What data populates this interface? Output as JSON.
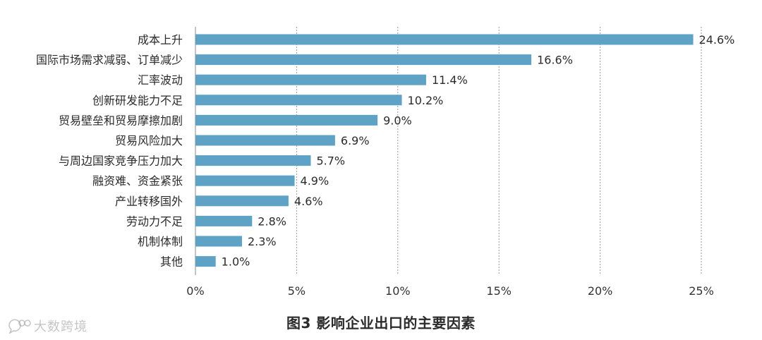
{
  "chart_data": {
    "type": "bar",
    "orientation": "horizontal",
    "title": "图3  影响企业出口的主要因素",
    "categories": [
      "成本上升",
      "国际市场需求减弱、订单减少",
      "汇率波动",
      "创新研发能力不足",
      "贸易壁垒和贸易摩擦加剧",
      "贸易风险加大",
      "与周边国家竞争压力加大",
      "融资难、资金紧张",
      "产业转移国外",
      "劳动力不足",
      "机制体制",
      "其他"
    ],
    "values": [
      24.6,
      16.6,
      11.4,
      10.2,
      9.0,
      6.9,
      5.7,
      4.9,
      4.6,
      2.8,
      2.3,
      1.0
    ],
    "data_labels": [
      "24.6%",
      "16.6%",
      "11.4%",
      "10.2%",
      "9.0%",
      "6.9%",
      "5.7%",
      "4.9%",
      "4.6%",
      "2.8%",
      "2.3%",
      "1.0%"
    ],
    "xlim": [
      0,
      25
    ],
    "xticks": [
      0,
      5,
      10,
      15,
      20,
      25
    ],
    "xtick_labels": [
      "0%",
      "5%",
      "10%",
      "15%",
      "20%",
      "25%"
    ],
    "xlabel": "",
    "ylabel": "",
    "grid": "vertical dashed",
    "bar_color": "#5ea3c6",
    "legend": "none"
  },
  "watermark": {
    "text": "大数跨境",
    "icon": "chat-bubble-icon"
  }
}
